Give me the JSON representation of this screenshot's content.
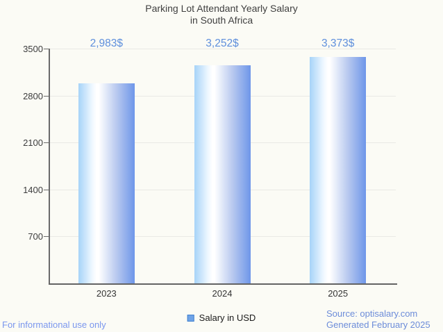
{
  "title": {
    "line1": "Parking Lot Attendant Yearly Salary",
    "line2": "in South Africa"
  },
  "chart_data": {
    "type": "bar",
    "title": "Parking Lot Attendant Yearly Salary in South Africa",
    "categories": [
      "2023",
      "2024",
      "2025"
    ],
    "series": [
      {
        "name": "Salary in USD",
        "values": [
          2983,
          3252,
          3373
        ]
      }
    ],
    "value_labels": [
      "2,983$",
      "3,252$",
      "3,373$"
    ],
    "xlabel": "",
    "ylabel": "",
    "ylim": [
      0,
      3500
    ],
    "yticks": [
      700,
      1400,
      2100,
      2800,
      3500
    ],
    "grid": true,
    "legend_position": "bottom"
  },
  "legend": {
    "items": [
      {
        "label": "Salary in USD",
        "color": "#6fa3e7",
        "border": "#4080cf"
      }
    ]
  },
  "footer": {
    "left": "For informational use only",
    "source_line1": "Source: optisalary.com",
    "source_line2": "Generated February 2025"
  },
  "colors": {
    "background": "#fbfbf5",
    "title_text": "#404040",
    "axis": "#636363",
    "gridline": "#e9e9e5",
    "tick_label": "#3d3d3d",
    "value_label": "#5e8fdc",
    "bar_gradient_left": "#a6d3f8",
    "bar_gradient_highlight": "#ffffff",
    "bar_gradient_right": "#6e96e9",
    "legend_text": "#1a1a1a",
    "footer_left_text": "#7b97ee",
    "footer_right_text": "#6c8cd9"
  }
}
